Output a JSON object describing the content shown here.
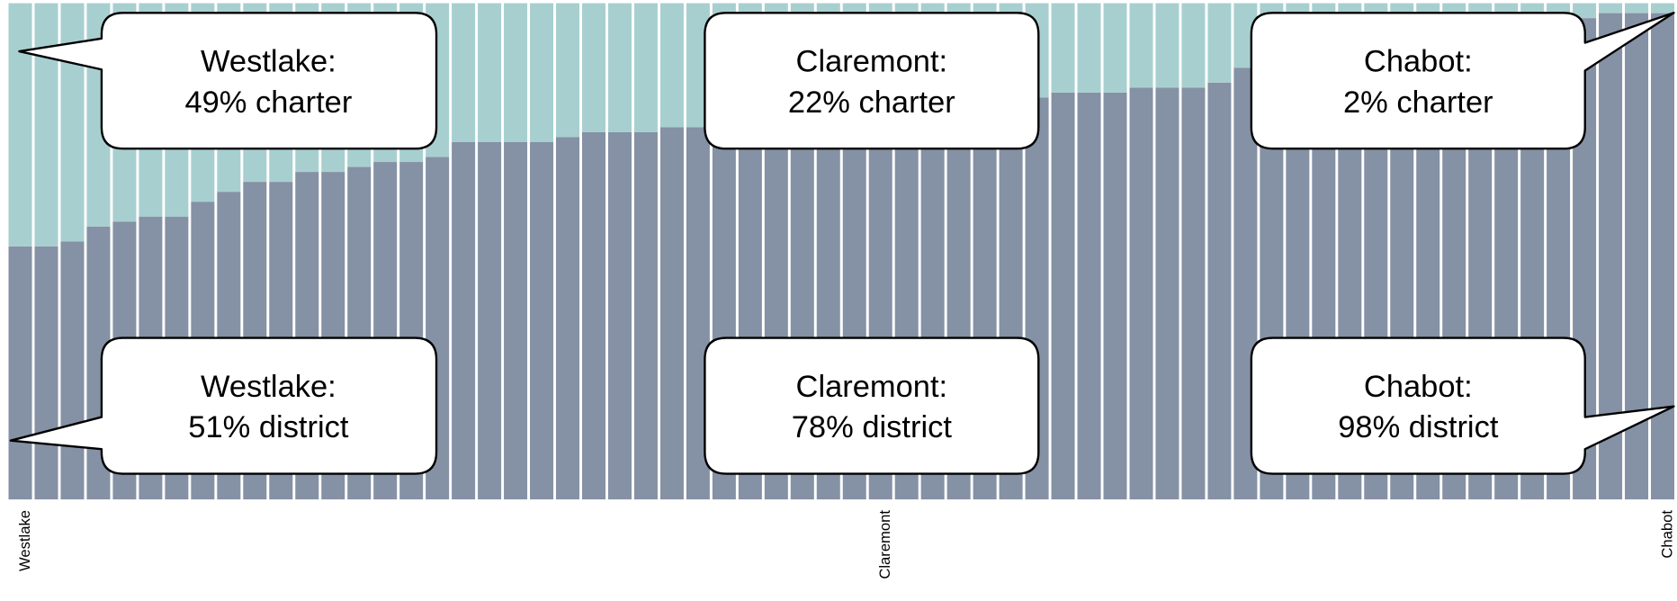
{
  "chart_data": {
    "type": "stacked_bar",
    "categories": [
      "Westlake",
      null,
      null,
      null,
      null,
      null,
      null,
      null,
      null,
      null,
      null,
      null,
      null,
      null,
      null,
      null,
      null,
      null,
      null,
      null,
      null,
      null,
      null,
      null,
      null,
      null,
      null,
      null,
      null,
      null,
      null,
      null,
      null,
      "Claremont",
      null,
      null,
      null,
      null,
      null,
      null,
      null,
      null,
      null,
      null,
      null,
      null,
      null,
      null,
      null,
      null,
      null,
      null,
      null,
      null,
      null,
      null,
      null,
      null,
      null,
      null,
      null,
      null,
      null,
      "Chabot"
    ],
    "ylim": [
      0,
      100
    ],
    "series": [
      {
        "name": "district",
        "color": "#8591a4",
        "values": [
          51,
          51,
          52,
          55,
          56,
          57,
          57,
          60,
          62,
          64,
          64,
          66,
          66,
          67,
          68,
          68,
          69,
          72,
          72,
          72,
          72,
          73,
          74,
          74,
          74,
          75,
          75,
          76,
          76,
          77,
          77,
          77,
          78,
          78,
          78,
          79,
          79,
          80,
          80,
          81,
          82,
          82,
          82,
          83,
          83,
          83,
          84,
          87,
          88,
          88,
          89,
          90,
          90,
          91,
          92,
          92,
          93,
          94,
          95,
          95,
          97,
          98,
          98,
          98
        ]
      },
      {
        "name": "charter",
        "color": "#a8cfcf",
        "values": [
          49,
          49,
          48,
          45,
          44,
          43,
          43,
          40,
          38,
          36,
          36,
          34,
          34,
          33,
          32,
          32,
          31,
          28,
          28,
          28,
          28,
          27,
          26,
          26,
          26,
          25,
          25,
          24,
          24,
          23,
          23,
          23,
          22,
          22,
          22,
          21,
          21,
          20,
          20,
          19,
          18,
          18,
          18,
          17,
          17,
          17,
          16,
          13,
          12,
          12,
          11,
          10,
          10,
          9,
          8,
          8,
          7,
          6,
          5,
          5,
          3,
          2,
          2,
          2
        ]
      }
    ],
    "annotations": [
      {
        "lines": [
          "Westlake:",
          "49% charter"
        ]
      },
      {
        "lines": [
          "Claremont:",
          "22% charter"
        ]
      },
      {
        "lines": [
          "Chabot:",
          "2% charter"
        ]
      },
      {
        "lines": [
          "Westlake:",
          "51% district"
        ]
      },
      {
        "lines": [
          "Claremont:",
          "78% district"
        ]
      },
      {
        "lines": [
          "Chabot:",
          "98% district"
        ]
      }
    ]
  }
}
